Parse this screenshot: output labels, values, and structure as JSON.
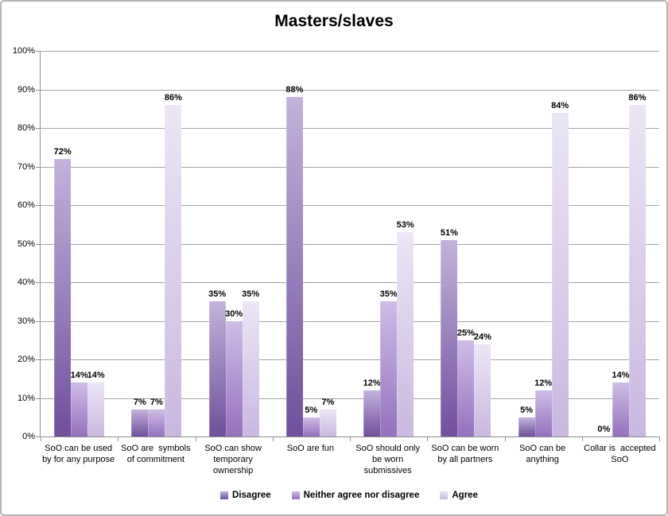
{
  "title": "Masters/slaves",
  "chart_data": {
    "type": "bar",
    "title": "Masters/slaves",
    "categories": [
      "SoO can be used by for any purpose",
      "SoO are  symbols of commitment",
      "SoO can show temporary ownership",
      "SoO are fun",
      "SoO should only be worn submissives",
      "SoO can be worn by all partners",
      "SoO can be anything",
      "Collar is  accepted SoO"
    ],
    "series": [
      {
        "name": "Disagree",
        "values": [
          72,
          7,
          35,
          88,
          12,
          51,
          5,
          0
        ],
        "color_top": "#c3b2dc",
        "color_bottom": "#6f4f9c"
      },
      {
        "name": "Neither agree nor disagree",
        "values": [
          14,
          7,
          30,
          5,
          35,
          25,
          12,
          14
        ],
        "color_top": "#cfbde6",
        "color_bottom": "#9571bd"
      },
      {
        "name": "Agree",
        "values": [
          14,
          86,
          35,
          7,
          53,
          24,
          84,
          86
        ],
        "color_top": "#ece6f6",
        "color_bottom": "#c9b8e0"
      }
    ],
    "xlabel": "",
    "ylabel": "",
    "ylim": [
      0,
      100
    ],
    "ytick_step": 10,
    "ytick_suffix": "%",
    "data_label_suffix": "%",
    "grid": true,
    "legend_position": "bottom"
  },
  "colors": {
    "background": "#ffffff",
    "border": "#b5b5b5",
    "gridline": "#a5a5a5",
    "axis": "#8f8f8f",
    "text": "#000000"
  }
}
